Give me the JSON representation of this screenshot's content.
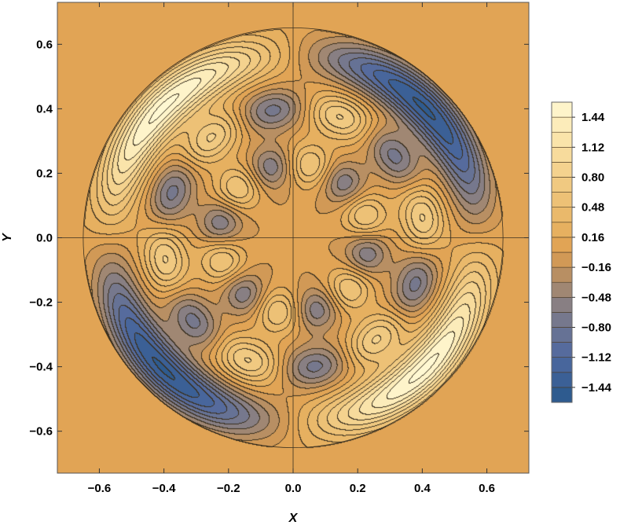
{
  "chart_data": {
    "type": "contour",
    "title": "",
    "xlabel": "X",
    "ylabel": "Y",
    "xlim": [
      -0.73,
      0.73
    ],
    "ylim": [
      -0.73,
      0.73
    ],
    "x_ticks": [
      {
        "value": -0.6,
        "label": "−0.6"
      },
      {
        "value": -0.4,
        "label": "−0.4"
      },
      {
        "value": -0.2,
        "label": "−0.2"
      },
      {
        "value": 0.0,
        "label": "0.0"
      },
      {
        "value": 0.2,
        "label": "0.2"
      },
      {
        "value": 0.4,
        "label": "0.4"
      },
      {
        "value": 0.6,
        "label": "0.6"
      }
    ],
    "y_ticks": [
      {
        "value": -0.6,
        "label": "−0.6"
      },
      {
        "value": -0.4,
        "label": "−0.4"
      },
      {
        "value": -0.2,
        "label": "−0.2"
      },
      {
        "value": 0.0,
        "label": "0.0"
      },
      {
        "value": 0.2,
        "label": "0.2"
      },
      {
        "value": 0.4,
        "label": "0.4"
      },
      {
        "value": 0.6,
        "label": "0.6"
      }
    ],
    "field": {
      "support_radius": 0.65,
      "note_features": "rotationally symmetric pattern with outer crescent lobes and two inner rings of blobs",
      "peaks": [
        {
          "x": -0.53,
          "y": 0.27,
          "value": 1.6
        },
        {
          "x": 0.52,
          "y": -0.27,
          "value": 1.6
        },
        {
          "x": 0.52,
          "y": 0.27,
          "value": -1.6
        },
        {
          "x": -0.52,
          "y": -0.27,
          "value": -1.6
        }
      ]
    },
    "contour_levels": [
      -1.6,
      -1.44,
      -1.28,
      -1.12,
      -0.96,
      -0.8,
      -0.64,
      -0.48,
      -0.32,
      -0.16,
      0.0,
      0.16,
      0.32,
      0.48,
      0.64,
      0.8,
      0.96,
      1.12,
      1.28,
      1.44,
      1.6
    ],
    "colorbar": {
      "labels": [
        "1.44",
        "1.12",
        "0.80",
        "0.48",
        "0.16",
        "−0.16",
        "−0.48",
        "−0.80",
        "−1.12",
        "−1.44"
      ],
      "label_values": [
        1.44,
        1.12,
        0.8,
        0.48,
        0.16,
        -0.16,
        -0.48,
        -0.8,
        -1.12,
        -1.44
      ],
      "range": [
        -1.6,
        1.6
      ],
      "bins": 20
    },
    "grid": false,
    "legend_position": "right",
    "colors": {
      "low": "#2b5b8c",
      "mid_low": "#7a7a8a",
      "zero": "#e0a050",
      "high": "#fff6cc",
      "contour_line": "#3a3020",
      "frame": "#555555"
    }
  }
}
